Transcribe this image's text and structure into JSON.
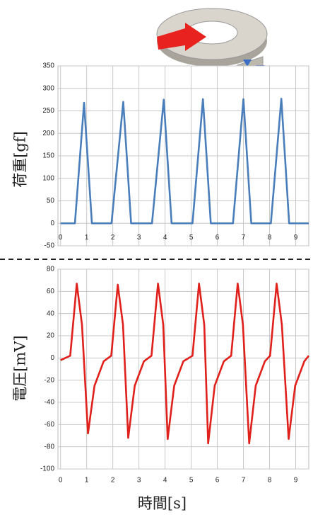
{
  "chart_data": [
    {
      "type": "line",
      "y_label": "荷重[gf]",
      "color": "#4a7ebb",
      "grid": true,
      "x": [
        0,
        0.55,
        0.9,
        1.2,
        1.95,
        2.4,
        2.7,
        3.5,
        3.95,
        4.25,
        5.05,
        5.45,
        5.75,
        6.6,
        7.0,
        7.3,
        8.05,
        8.45,
        8.75,
        9.5
      ],
      "values": [
        0,
        0,
        268,
        0,
        0,
        270,
        0,
        0,
        275,
        0,
        0,
        276,
        0,
        0,
        276,
        0,
        0,
        277,
        0,
        0
      ],
      "xlim": [
        -0.1,
        9.5
      ],
      "xticks": [
        0,
        1,
        2,
        3,
        4,
        5,
        6,
        7,
        8,
        9
      ],
      "ylim": [
        -50,
        350
      ],
      "yticks": [
        -50,
        0,
        50,
        100,
        150,
        200,
        250,
        300,
        350
      ]
    },
    {
      "type": "line",
      "y_label": "電圧[mV]",
      "x_label": "時間[s]",
      "color": "#e0201b",
      "grid": true,
      "x": [
        0,
        0.37,
        0.62,
        0.82,
        1.05,
        1.3,
        1.65,
        1.94,
        2.19,
        2.39,
        2.59,
        2.84,
        3.19,
        3.48,
        3.73,
        3.93,
        4.1,
        4.35,
        4.7,
        5.05,
        5.3,
        5.5,
        5.65,
        5.9,
        6.25,
        6.53,
        6.78,
        6.98,
        7.22,
        7.47,
        7.82,
        8.02,
        8.27,
        8.47,
        8.73,
        8.98,
        9.33,
        9.5
      ],
      "values": [
        -2,
        2,
        67,
        30,
        -68,
        -25,
        -3,
        2,
        66,
        30,
        -72,
        -25,
        -3,
        2,
        67,
        30,
        -73,
        -25,
        -3,
        2,
        67,
        30,
        -77,
        -25,
        -3,
        2,
        67,
        30,
        -77,
        -25,
        -3,
        2,
        67,
        30,
        -73,
        -25,
        -3,
        2
      ],
      "xlim": [
        -0.1,
        9.5
      ],
      "xticks": [
        0,
        1,
        2,
        3,
        4,
        5,
        6,
        7,
        8,
        9
      ],
      "ylim": [
        -100,
        80
      ],
      "yticks": [
        -100,
        -80,
        -60,
        -40,
        -20,
        0,
        20,
        40,
        60,
        80
      ]
    }
  ]
}
